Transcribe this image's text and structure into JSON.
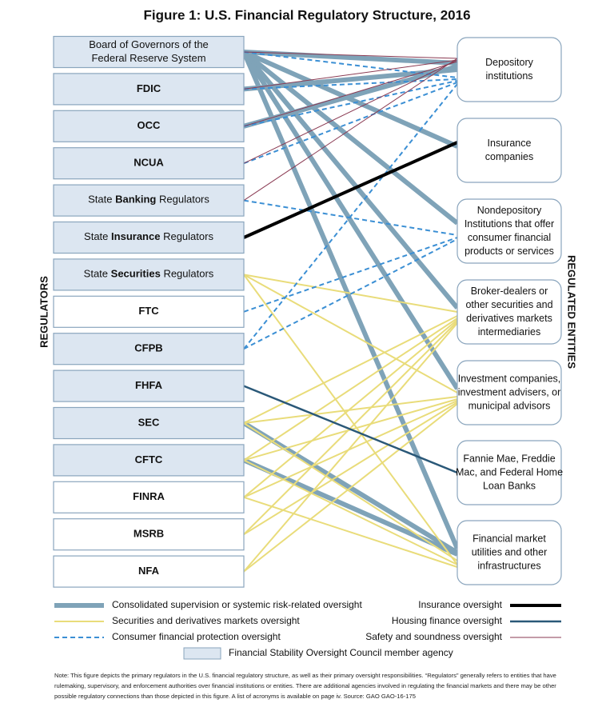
{
  "title": "Figure 1: U.S. Financial Regulatory Structure, 2016",
  "left_axis_label": "REGULATORS",
  "right_axis_label": "REGULATED ENTITIES",
  "regulators": [
    {
      "lines": [
        "Board of Governors of the",
        "Federal Reserve System"
      ],
      "member": true
    },
    {
      "text": "FDIC",
      "member": true
    },
    {
      "text": "OCC",
      "member": true
    },
    {
      "text": "NCUA",
      "member": true
    },
    {
      "parts": [
        "State",
        "Banking",
        "Regulators"
      ],
      "member": true
    },
    {
      "parts": [
        "State",
        "Insurance",
        "Regulators"
      ],
      "member": true
    },
    {
      "parts": [
        "State",
        "Securities",
        "Regulators"
      ],
      "member": true
    },
    {
      "text": "FTC",
      "member": false
    },
    {
      "text": "CFPB",
      "member": true
    },
    {
      "text": "FHFA",
      "member": true
    },
    {
      "text": "SEC",
      "member": true
    },
    {
      "text": "CFTC",
      "member": true
    },
    {
      "text": "FINRA",
      "member": false
    },
    {
      "text": "MSRB",
      "member": false
    },
    {
      "text": "NFA",
      "member": false
    }
  ],
  "entities": [
    {
      "lines": [
        "Depository",
        "institutions"
      ]
    },
    {
      "lines": [
        "Insurance",
        "companies"
      ]
    },
    {
      "lines": [
        "Nondepository",
        "Institutions that offer",
        "consumer financial",
        "products or services"
      ]
    },
    {
      "lines": [
        "Broker-dealers or",
        "other securities and",
        "derivatives markets",
        "intermediaries"
      ]
    },
    {
      "lines": [
        "Investment companies,",
        "investment advisers, or",
        "municipal advisors"
      ]
    },
    {
      "lines": [
        "Fannie Mae, Freddie",
        "Mac, and Federal Home",
        "Loan Banks"
      ]
    },
    {
      "lines": [
        "Financial market",
        "utilities and other",
        "infrastructures"
      ]
    }
  ],
  "legend": [
    {
      "label": "Consolidated supervision or systemic risk-related oversight"
    },
    {
      "label": "Securities and derivatives markets oversight"
    },
    {
      "label": "Consumer financial protection oversight"
    },
    {
      "label": "Insurance oversight"
    },
    {
      "label": "Housing finance oversight"
    },
    {
      "label": "Safety and soundness oversight"
    }
  ],
  "member_legend": "Financial Stability Oversight Council member agency",
  "note": "Note: This figure depicts the primary regulators in the U.S. financial regulatory structure, as well as their primary oversight responsibilities. “Regulators” generally refers to entities that have rulemaking, supervisory, and enforcement authorities over financial institutions or entities. There are additional agencies involved in regulating the financial markets and there may be other possible regulatory connections than those depicted in this figure. A list of acronyms is available on page iv. Source: GAO GAO-16-175"
}
